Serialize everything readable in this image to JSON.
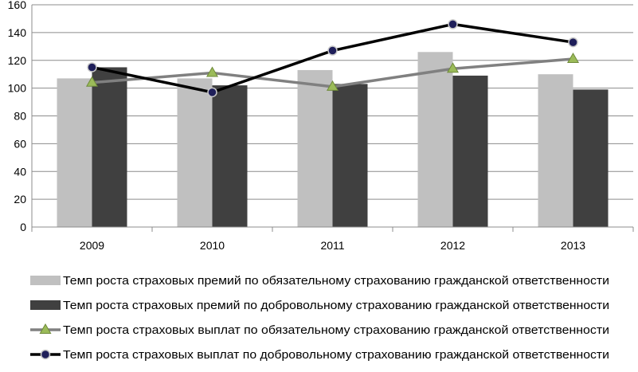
{
  "chart_data": {
    "type": "bar",
    "title": "",
    "xlabel": "",
    "ylabel": "",
    "ylim": [
      0,
      160
    ],
    "yticks": [
      0,
      20,
      40,
      60,
      80,
      100,
      120,
      140,
      160
    ],
    "grid": true,
    "legend_position": "bottom",
    "categories": [
      "2009",
      "2010",
      "2011",
      "2012",
      "2013"
    ],
    "series": [
      {
        "name": "Темп роста страховых премий по обязательному страхованию гражданской ответственности",
        "kind": "bar",
        "color": "#c0c0c0",
        "values": [
          107,
          107,
          113,
          126,
          110
        ]
      },
      {
        "name": "Темп роста страховых премий по добровольному страхованию гражданской ответственности",
        "kind": "bar",
        "color": "#404040",
        "values": [
          115,
          102,
          103,
          109,
          99
        ]
      },
      {
        "name": "Темп роста страховых выплат по обязательному страхованию гражданской ответственности",
        "kind": "line",
        "marker": "triangle",
        "color": "#808080",
        "marker_color": "#9bbb59",
        "values": [
          104,
          111,
          101,
          114,
          121
        ]
      },
      {
        "name": "Темп роста страховых выплат по добровольному страхованию гражданской ответственности",
        "kind": "line",
        "marker": "circle",
        "color": "#000000",
        "marker_color": "#1f1f5a",
        "values": [
          115,
          97,
          127,
          146,
          133
        ]
      }
    ]
  }
}
